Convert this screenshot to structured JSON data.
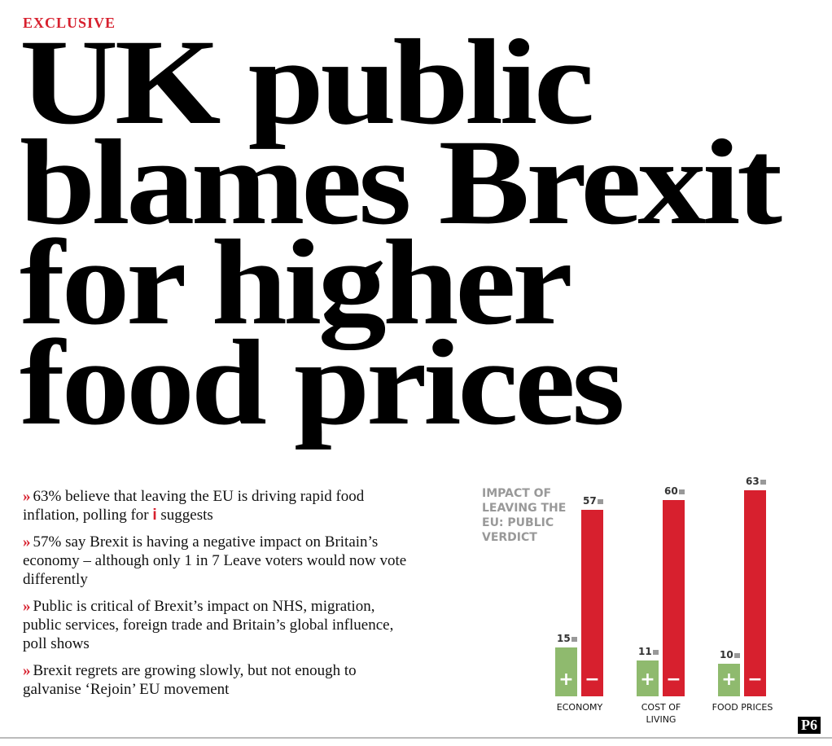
{
  "header": {
    "kicker": "EXCLUSIVE",
    "headline_lines": [
      "UK public",
      "blames Brexit",
      "for higher",
      "food prices"
    ]
  },
  "bullet_marker": "»",
  "bullets": [
    [
      "63% believe that leaving the EU is driving rapid food inflation, polling for",
      "i",
      "suggests"
    ],
    [
      "57% say Brexit is having a negative impact on Britain’s economy – although only 1 in 7 Leave voters would now vote differently"
    ],
    [
      "Public is critical of Brexit’s impact on NHS, migration, public services, foreign trade and Britain’s global influence, poll shows"
    ],
    [
      "Brexit regrets are growing slowly, but not enough to galvanise ‘Rejoin’ EU movement"
    ]
  ],
  "chart_data": {
    "type": "bar",
    "title": "IMPACT OF LEAVING THE EU: PUBLIC VERDICT",
    "categories": [
      "ECONOMY",
      "COST OF LIVING",
      "FOOD PRICES"
    ],
    "series": [
      {
        "name": "+",
        "color": "#8fba6e",
        "values": [
          15,
          11,
          10
        ]
      },
      {
        "name": "−",
        "color": "#d7202e",
        "values": [
          57,
          60,
          63
        ]
      }
    ]
  },
  "page_label": "P6"
}
